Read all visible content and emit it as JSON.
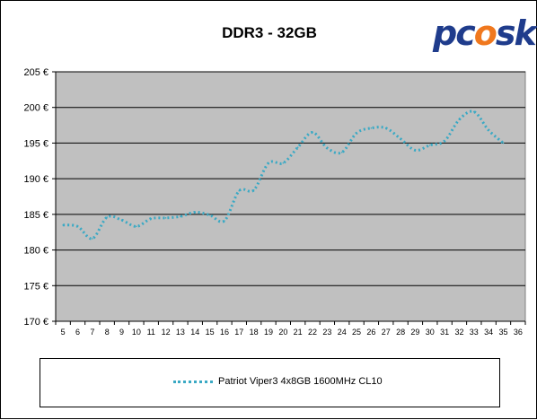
{
  "chart_data": {
    "type": "line",
    "title": "DDR3 - 32GB",
    "x": [
      5,
      6,
      7,
      8,
      9,
      10,
      11,
      12,
      13,
      14,
      15,
      16,
      17,
      18,
      19,
      20,
      21,
      22,
      23,
      24,
      25,
      26,
      27,
      28,
      29,
      30,
      31,
      32,
      33,
      34,
      35,
      36
    ],
    "xlim": [
      4.5,
      36.5
    ],
    "ylim": [
      170,
      205
    ],
    "yticks": [
      170,
      175,
      180,
      185,
      190,
      195,
      200,
      205
    ],
    "ytick_labels": [
      "170 €",
      "175 €",
      "180 €",
      "185 €",
      "190 €",
      "195 €",
      "200 €",
      "205 €"
    ],
    "grid": "horizontal",
    "legend": "bottom",
    "series": [
      {
        "name": "Patriot Viper3 4x8GB 1600MHz CL10",
        "color": "#3aa9c4",
        "style": "dotted",
        "x": [
          5,
          6,
          7,
          8,
          9,
          10,
          11,
          12,
          13,
          14,
          15,
          16,
          17,
          18,
          19,
          20,
          21,
          22,
          23,
          24,
          25,
          26,
          27,
          28,
          29,
          30,
          31,
          32,
          33,
          34,
          35
        ],
        "values": [
          183.5,
          183.3,
          181.6,
          184.6,
          184.2,
          183.3,
          184.4,
          184.5,
          184.7,
          185.3,
          184.9,
          184.1,
          188.3,
          188.4,
          192.2,
          192.2,
          194.4,
          196.5,
          194.3,
          193.7,
          196.4,
          197.1,
          197.1,
          195.6,
          194.0,
          194.7,
          195.3,
          198.3,
          199.4,
          196.8,
          195.0
        ]
      }
    ]
  },
  "logo": {
    "text_pc": "pc",
    "text_fire": "o",
    "text_sk": "sk"
  },
  "colors": {
    "plot_bg": "#c0c0c0",
    "grid": "#000000",
    "series": "#3aa9c4"
  }
}
